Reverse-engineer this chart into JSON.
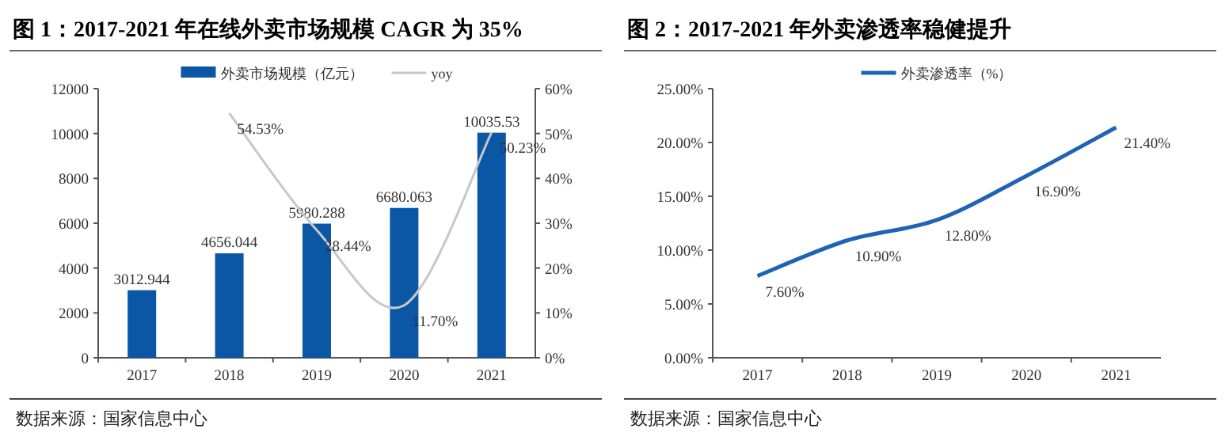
{
  "chart_data": [
    {
      "type": "bar",
      "title": "图 1：2017-2021 年在线外卖市场规模 CAGR 为 35%",
      "categories": [
        "2017",
        "2018",
        "2019",
        "2020",
        "2021"
      ],
      "series": [
        {
          "name": "外卖市场规模（亿元）",
          "color": "#0b57a6",
          "values": [
            3012.944,
            4656.044,
            5980.288,
            6680.063,
            10035.53
          ],
          "value_labels": [
            "3012.944",
            "4656.044",
            "5980.288",
            "6680.063",
            "10035.53"
          ]
        },
        {
          "name": "yoy",
          "type": "line",
          "axis": "y2",
          "color": "#c8c8c8",
          "values": [
            null,
            54.53,
            28.44,
            11.7,
            50.23
          ],
          "value_labels": [
            null,
            "54.53%",
            "28.44%",
            "11.70%",
            "50.23%"
          ]
        }
      ],
      "ylim": [
        0,
        12000
      ],
      "yticks": [
        0,
        2000,
        4000,
        6000,
        8000,
        10000,
        12000
      ],
      "y2lim": [
        0,
        60
      ],
      "y2ticks": [
        {
          "value": 0,
          "label": "0%"
        },
        {
          "value": 10,
          "label": "10%"
        },
        {
          "value": 20,
          "label": "20%"
        },
        {
          "value": 30,
          "label": "30%"
        },
        {
          "value": 40,
          "label": "40%"
        },
        {
          "value": 50,
          "label": "50%"
        },
        {
          "value": 60,
          "label": "60%"
        }
      ],
      "legend": "top",
      "annotations": [
        "数据来源：国家信息中心"
      ]
    },
    {
      "type": "line",
      "title": "图 2：2017-2021 年外卖渗透率稳健提升",
      "categories": [
        "2017",
        "2018",
        "2019",
        "2020",
        "2021"
      ],
      "series": [
        {
          "name": "外卖渗透率（%）",
          "color": "#1f64b4",
          "values": [
            7.6,
            10.9,
            12.8,
            16.9,
            21.4
          ],
          "value_labels": [
            "7.60%",
            "10.90%",
            "12.80%",
            "16.90%",
            "21.40%"
          ]
        }
      ],
      "ylim": [
        0,
        25
      ],
      "yticks": [
        {
          "value": 0,
          "label": "0.00%"
        },
        {
          "value": 5,
          "label": "5.00%"
        },
        {
          "value": 10,
          "label": "10.00%"
        },
        {
          "value": 15,
          "label": "15.00%"
        },
        {
          "value": 20,
          "label": "20.00%"
        },
        {
          "value": 25,
          "label": "25.00%"
        }
      ],
      "legend": "top",
      "annotations": [
        "数据来源：国家信息中心"
      ]
    }
  ]
}
